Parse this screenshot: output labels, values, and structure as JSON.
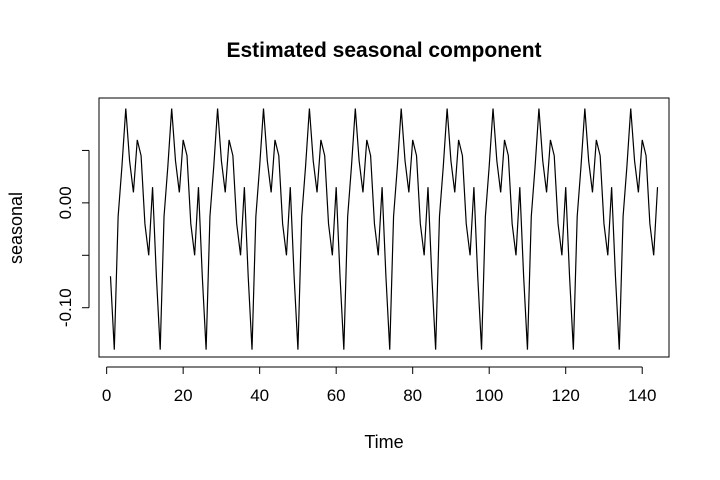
{
  "chart_data": {
    "type": "line",
    "title": "Estimated seasonal component",
    "xlabel": "Time",
    "ylabel": "seasonal",
    "xlim": [
      -2,
      147
    ],
    "ylim": [
      -0.147,
      0.1
    ],
    "x_ticks": [
      0,
      20,
      40,
      60,
      80,
      100,
      120,
      140
    ],
    "x_tick_labels": [
      "0",
      "20",
      "40",
      "60",
      "80",
      "100",
      "120",
      "140"
    ],
    "y_ticks": [
      0.05,
      0.0,
      -0.05,
      -0.1
    ],
    "y_tick_labels": [
      "",
      "0.00",
      "",
      "-0.10"
    ],
    "grid": false,
    "legend": "none",
    "line_color": "#000000",
    "period": 12,
    "cycles": 12,
    "pattern": [
      -0.07,
      -0.14,
      -0.013,
      0.035,
      0.09,
      0.04,
      0.01,
      0.06,
      0.045,
      -0.02,
      -0.05,
      0.015
    ],
    "series": [
      {
        "x_start": 1,
        "x_end": 144
      }
    ]
  }
}
